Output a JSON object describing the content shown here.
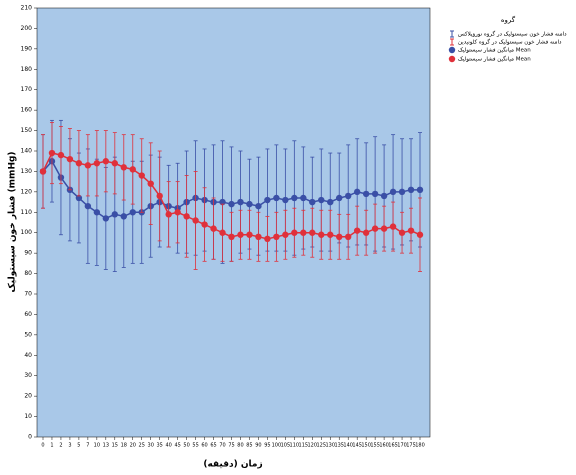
{
  "chart_data": {
    "type": "line",
    "x_label": "زمان (دقیقه)",
    "y_label": "فشار خون سیستولیک (mmHg)",
    "legend_title": "گروه",
    "categories": [
      "0",
      "1",
      "2",
      "3",
      "5",
      "7",
      "10",
      "13",
      "15",
      "18",
      "20",
      "25",
      "30",
      "35",
      "40",
      "45",
      "50",
      "55",
      "60",
      "65",
      "70",
      "75",
      "80",
      "85",
      "90",
      "95",
      "100",
      "105",
      "110",
      "115",
      "120",
      "125",
      "130",
      "135",
      "140",
      "145",
      "150",
      "155",
      "160",
      "165",
      "170",
      "175",
      "180"
    ],
    "ylim": [
      0,
      210
    ],
    "yticks": [
      0,
      10,
      20,
      30,
      40,
      50,
      60,
      70,
      80,
      90,
      100,
      110,
      120,
      130,
      140,
      150,
      160,
      170,
      180,
      190,
      200,
      210
    ],
    "series": [
      {
        "name": "میانگین فشار سیستولیک Mean",
        "error_name": "دامنه فشار خون سیستولیک در گروه نوروپلاکس",
        "color": "#3a4fa6",
        "values": [
          130,
          135,
          127,
          121,
          117,
          113,
          110,
          107,
          109,
          108,
          110,
          110,
          113,
          115,
          113,
          112,
          115,
          117,
          116,
          115,
          115,
          114,
          115,
          114,
          113,
          116,
          117,
          116,
          117,
          117,
          115,
          116,
          115,
          117,
          118,
          120,
          119,
          119,
          118,
          120,
          120,
          121,
          121
        ],
        "errors": [
          18,
          20,
          28,
          25,
          22,
          28,
          26,
          25,
          28,
          25,
          25,
          25,
          25,
          22,
          20,
          22,
          25,
          28,
          25,
          28,
          30,
          28,
          25,
          22,
          24,
          25,
          26,
          25,
          28,
          25,
          22,
          25,
          24,
          22,
          25,
          26,
          25,
          28,
          25,
          28,
          26,
          25,
          28
        ]
      },
      {
        "name": "میانگین فشار سیستولیک Mean",
        "error_name": "دامنه فشار خون سیستولیک در گروه کلونیدین",
        "color": "#e0303a",
        "values": [
          130,
          139,
          138,
          136,
          134,
          133,
          134,
          135,
          134,
          132,
          131,
          128,
          124,
          118,
          109,
          110,
          108,
          106,
          104,
          102,
          100,
          98,
          99,
          99,
          98,
          97,
          98,
          99,
          100,
          100,
          100,
          99,
          99,
          98,
          98,
          101,
          100,
          102,
          102,
          103,
          100,
          101,
          99
        ],
        "errors": [
          18,
          15,
          14,
          15,
          16,
          15,
          16,
          15,
          15,
          16,
          17,
          18,
          20,
          22,
          16,
          15,
          20,
          24,
          18,
          15,
          14,
          12,
          12,
          12,
          12,
          11,
          12,
          12,
          12,
          11,
          12,
          12,
          12,
          11,
          11,
          12,
          11,
          12,
          11,
          12,
          10,
          11,
          18
        ]
      }
    ]
  }
}
